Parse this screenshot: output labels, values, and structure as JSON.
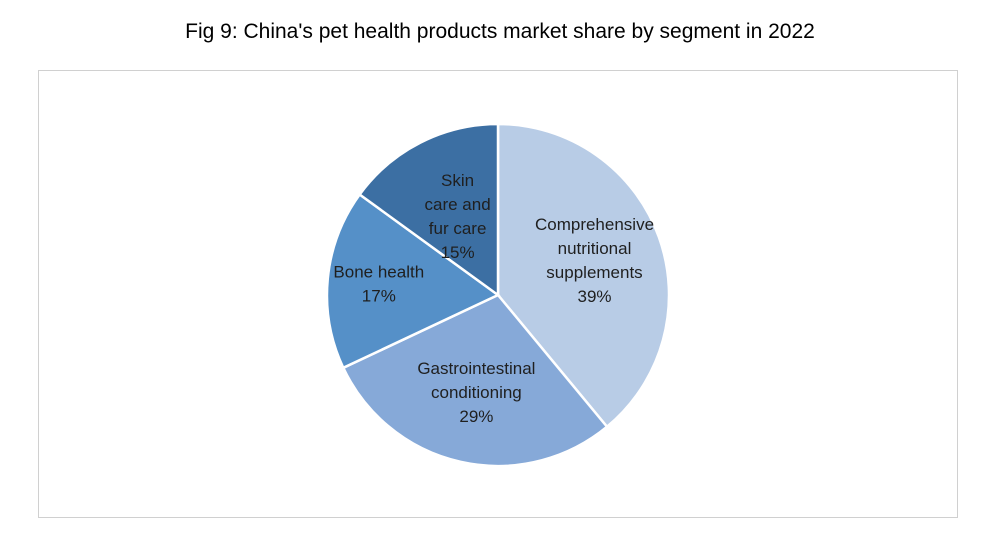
{
  "chart_data": {
    "type": "pie",
    "title": "Fig 9: China's pet health products market share by segment in 2022",
    "slices": [
      {
        "label_lines": [
          "Comprehensive",
          "nutritional",
          "supplements"
        ],
        "value_text": "39%",
        "value": 39,
        "color": "#b8cce6"
      },
      {
        "label_lines": [
          "Gastrointestinal",
          "conditioning"
        ],
        "value_text": "29%",
        "value": 29,
        "color": "#86a9d8"
      },
      {
        "label_lines": [
          "Bone health"
        ],
        "value_text": "17%",
        "value": 17,
        "color": "#5590c8"
      },
      {
        "label_lines": [
          "Skin",
          "care and",
          "fur care"
        ],
        "value_text": "15%",
        "value": 15,
        "color": "#3c6fa3"
      }
    ],
    "legend": "none"
  }
}
